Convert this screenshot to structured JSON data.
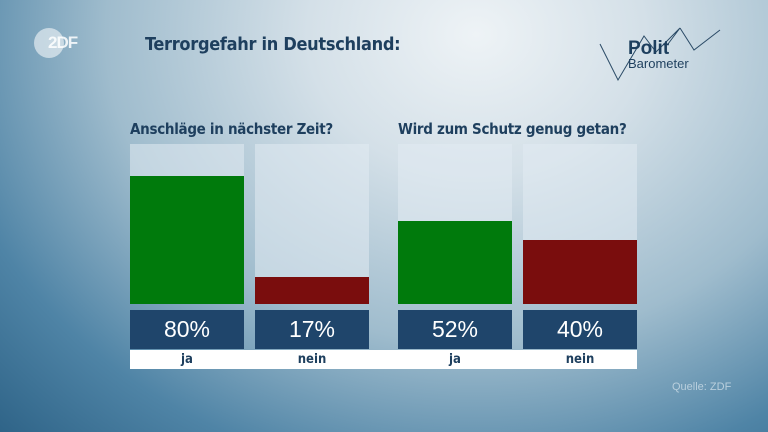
{
  "brand": {
    "logo_text": "ZDF",
    "show_logo_line1": "Polit",
    "show_logo_line2": "Barometer"
  },
  "title": "Terrorgefahr in Deutschland:",
  "source": "Quelle: ZDF",
  "colors": {
    "ja": "#007a0c",
    "nein": "#7a0d0d",
    "value_box": "#1f456b"
  },
  "chart_data": [
    {
      "type": "bar",
      "title": "Anschläge in nächster Zeit?",
      "categories": [
        "ja",
        "nein"
      ],
      "values": [
        80,
        17
      ],
      "value_labels": [
        "80%",
        "17%"
      ],
      "ylim": [
        0,
        100
      ],
      "unit": "%"
    },
    {
      "type": "bar",
      "title": "Wird zum Schutz genug getan?",
      "categories": [
        "ja",
        "nein"
      ],
      "values": [
        52,
        40
      ],
      "value_labels": [
        "52%",
        "40%"
      ],
      "ylim": [
        0,
        100
      ],
      "unit": "%"
    }
  ]
}
